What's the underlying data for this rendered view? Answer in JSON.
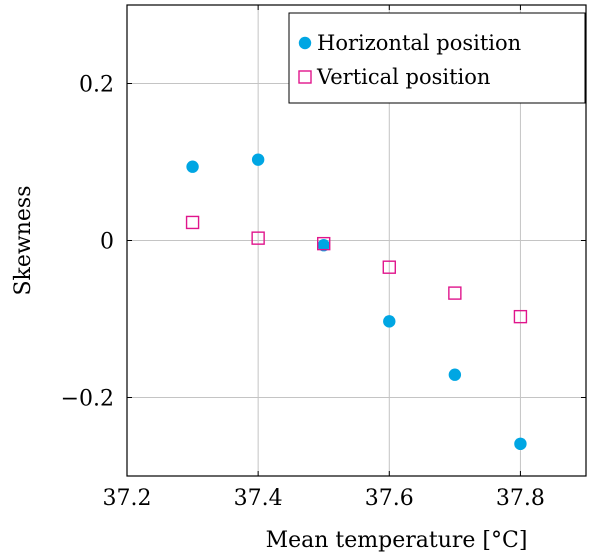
{
  "chart_data": {
    "type": "scatter",
    "title": "",
    "xlabel": "Mean temperature [°C]",
    "ylabel": "Skewness",
    "xlim": [
      37.2,
      37.9
    ],
    "ylim": [
      -0.3,
      0.3
    ],
    "xticks": [
      37.2,
      37.4,
      37.6,
      37.8
    ],
    "xtick_labels": [
      "37.2",
      "37.4",
      "37.6",
      "37.8"
    ],
    "yticks": [
      -0.2,
      0,
      0.2
    ],
    "ytick_labels": [
      "−0.2",
      "0",
      "0.2"
    ],
    "grid": true,
    "legend_position": "top-right",
    "series": [
      {
        "name": "Horizontal position",
        "marker": "filled-circle",
        "color": "#00a6e3",
        "x": [
          37.3,
          37.4,
          37.5,
          37.6,
          37.7,
          37.8
        ],
        "y": [
          0.094,
          0.103,
          -0.006,
          -0.103,
          -0.171,
          -0.259
        ]
      },
      {
        "name": "Vertical position",
        "marker": "open-square",
        "color": "#e0158c",
        "x": [
          37.3,
          37.4,
          37.5,
          37.6,
          37.7,
          37.8
        ],
        "y": [
          0.023,
          0.003,
          -0.004,
          -0.034,
          -0.067,
          -0.097
        ]
      }
    ]
  }
}
